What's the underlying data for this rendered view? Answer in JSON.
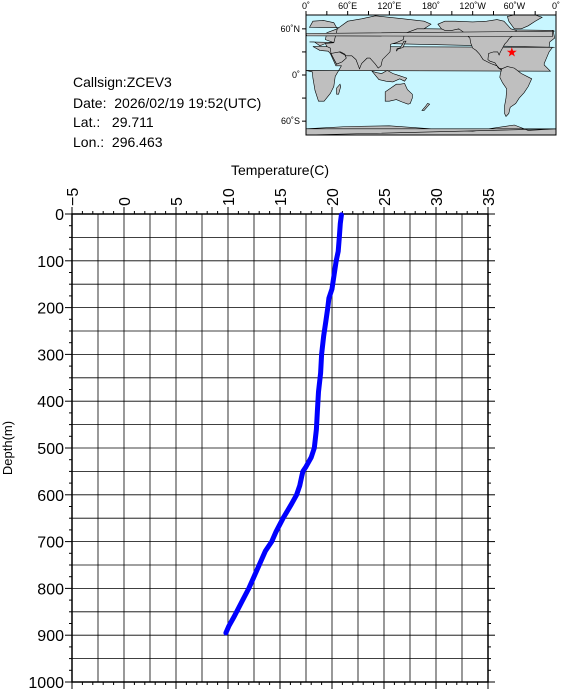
{
  "info": {
    "callsign_label": "Callsign:",
    "callsign": "ZCEV3",
    "date_label": "Date:",
    "date": "2026/02/19 19:52(UTC)",
    "lat_label": "Lat.:",
    "lat": "29.711",
    "lon_label": "Lon.:",
    "lon": "296.463"
  },
  "map": {
    "lon_ticks": [
      "0˚",
      "60˚E",
      "120˚E",
      "180˚",
      "120˚W",
      "60˚W",
      "0˚"
    ],
    "lat_ticks": [
      "60˚N",
      "0˚",
      "60˚S"
    ],
    "ocean_color": "#c8f6ff",
    "land_color": "#bfbfbf",
    "marker_color": "#ff0000",
    "marker_lat": 29.711,
    "marker_lon": 296.463
  },
  "chart_data": {
    "type": "line",
    "title": "",
    "xlabel": "Temperature(C)",
    "ylabel": "Depth(m)",
    "xlim": [
      -5,
      35
    ],
    "ylim": [
      0,
      1000
    ],
    "x_ticks": [
      "−5",
      "0",
      "5",
      "10",
      "15",
      "20",
      "25",
      "30",
      "35"
    ],
    "y_ticks": [
      "0",
      "100",
      "200",
      "300",
      "400",
      "500",
      "600",
      "700",
      "800",
      "900",
      "1000"
    ],
    "grid": true,
    "series": [
      {
        "color": "#0000ff",
        "depth": [
          2,
          20,
          50,
          80,
          100,
          130,
          160,
          180,
          200,
          230,
          260,
          300,
          340,
          380,
          420,
          460,
          500,
          520,
          540,
          550,
          560,
          580,
          600,
          620,
          650,
          680,
          700,
          720,
          750,
          780,
          800,
          830,
          860,
          880,
          895
        ],
        "temperature": [
          20.9,
          20.8,
          20.7,
          20.6,
          20.4,
          20.2,
          20.0,
          19.7,
          19.6,
          19.4,
          19.2,
          19.0,
          18.9,
          18.7,
          18.6,
          18.5,
          18.3,
          18.0,
          17.5,
          17.2,
          17.1,
          16.9,
          16.6,
          16.1,
          15.3,
          14.6,
          14.2,
          13.6,
          13.0,
          12.4,
          12.0,
          11.3,
          10.6,
          10.1,
          9.8
        ]
      }
    ]
  }
}
